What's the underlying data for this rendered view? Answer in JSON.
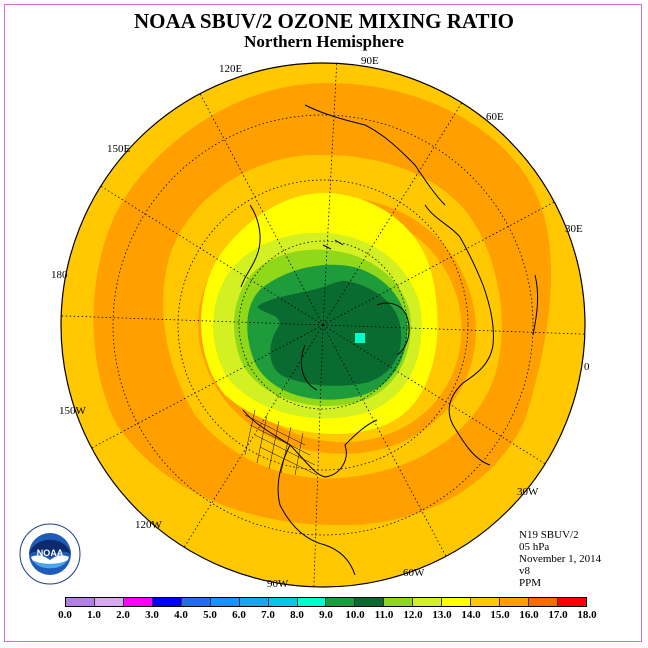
{
  "title": "NOAA SBUV/2 OZONE MIXING RATIO",
  "subtitle": "Northern Hemisphere",
  "longitude_labels": [
    "90E",
    "60E",
    "30E",
    "0",
    "30W",
    "60W",
    "90W",
    "120W",
    "150W",
    "180",
    "150E",
    "120E"
  ],
  "info": {
    "satellite": "N19 SBUV/2",
    "level": "05 hPa",
    "date": "November 1, 2014",
    "version": "v8",
    "units": "PPM"
  },
  "colorbar": {
    "ticks": [
      "0.0",
      "1.0",
      "2.0",
      "3.0",
      "4.0",
      "5.0",
      "6.0",
      "7.0",
      "8.0",
      "9.0",
      "10.0",
      "11.0",
      "12.0",
      "13.0",
      "14.0",
      "15.0",
      "16.0",
      "17.0",
      "18.0"
    ],
    "colors": [
      "#b37fe6",
      "#d9a6f0",
      "#ff00ff",
      "#0000ff",
      "#1f6fe8",
      "#1e90ff",
      "#18a8e8",
      "#00c8e8",
      "#00ffcc",
      "#1e9c3c",
      "#0a6b30",
      "#90d81a",
      "#d2f022",
      "#ffff00",
      "#ffc800",
      "#ffa000",
      "#ff6a00",
      "#ff0000",
      "#8b5a2b"
    ]
  },
  "logo_text": "NOAA",
  "logo_ring_text": "NATIONAL OCEANIC AND ATMOSPHERIC ADMINISTRATION · U.S. DEPARTMENT OF COMMERCE"
}
